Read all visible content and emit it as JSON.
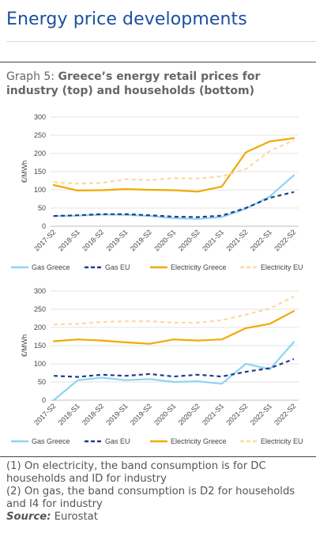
{
  "page_title": "Energy price developments",
  "graph_label": "Graph 5:",
  "graph_title": "Greece’s energy retail prices for industry (top) and households (bottom)",
  "notes": [
    "(1) On electricity, the band consumption is for DC households and ID for industry",
    "(2) On gas, the band consumption is D2 for households and I4 for industry"
  ],
  "source_label": "Source:",
  "source_value": "Eurostat",
  "colors": {
    "gas_greece": "#8fd3f4",
    "gas_eu": "#1b3f8b",
    "electricity_greece": "#f2a900",
    "electricity_eu": "#fbd9a0"
  },
  "chart_data": [
    {
      "type": "line",
      "categories": [
        "2017-S2",
        "2018-S1",
        "2018-S2",
        "2019-S1",
        "2019-S2",
        "2020-S1",
        "2020-S2",
        "2021-S1",
        "2021-S2",
        "2022-S1",
        "2022-S2"
      ],
      "ylabel": "€/MWh",
      "ylim": [
        0,
        300
      ],
      "yticks": [
        0,
        50,
        100,
        150,
        200,
        250,
        300
      ],
      "grid": true,
      "legend": "bottom",
      "series": [
        {
          "name": "Gas Greece",
          "style": "solid",
          "color": "#8fd3f4",
          "values": [
            28,
            29,
            32,
            31,
            28,
            22,
            20,
            25,
            48,
            82,
            140
          ]
        },
        {
          "name": "Gas EU",
          "style": "dashed",
          "color": "#1b3f8b",
          "values": [
            28,
            30,
            33,
            33,
            30,
            26,
            25,
            29,
            50,
            78,
            94
          ]
        },
        {
          "name": "Electricity Greece",
          "style": "solid",
          "color": "#f2a900",
          "values": [
            113,
            98,
            99,
            102,
            100,
            99,
            95,
            109,
            203,
            233,
            242
          ]
        },
        {
          "name": "Electricity EU",
          "style": "dashed",
          "color": "#fbd9a0",
          "values": [
            121,
            117,
            119,
            129,
            127,
            132,
            131,
            137,
            157,
            207,
            236
          ]
        }
      ]
    },
    {
      "type": "line",
      "categories": [
        "2017-S2",
        "2018-S1",
        "2018-S2",
        "2019-S1",
        "2019-S2",
        "2020-S1",
        "2020-S2",
        "2021-S1",
        "2021-S2",
        "2022-S1",
        "2022-S2"
      ],
      "ylabel": "€/MWh",
      "ylim": [
        0,
        300
      ],
      "yticks": [
        0,
        50,
        100,
        150,
        200,
        250,
        300
      ],
      "grid": true,
      "legend": "bottom",
      "series": [
        {
          "name": "Gas Greece",
          "style": "solid",
          "color": "#8fd3f4",
          "values": [
            0,
            55,
            62,
            55,
            58,
            50,
            52,
            45,
            100,
            85,
            160
          ]
        },
        {
          "name": "Gas EU",
          "style": "dashed",
          "color": "#1b3f8b",
          "values": [
            67,
            64,
            70,
            67,
            72,
            65,
            70,
            65,
            78,
            88,
            113
          ]
        },
        {
          "name": "Electricity Greece",
          "style": "solid",
          "color": "#f2a900",
          "values": [
            162,
            167,
            164,
            159,
            155,
            167,
            164,
            167,
            198,
            210,
            245
          ]
        },
        {
          "name": "Electricity EU",
          "style": "dashed",
          "color": "#fbd9a0",
          "values": [
            208,
            210,
            215,
            217,
            217,
            213,
            213,
            220,
            235,
            252,
            285
          ]
        }
      ]
    }
  ]
}
